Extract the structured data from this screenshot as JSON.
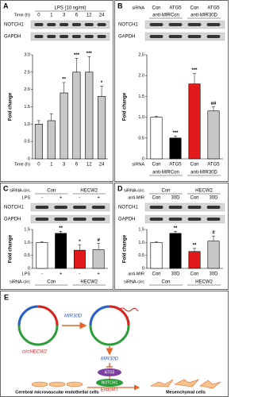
{
  "chart_data": [
    {
      "type": "bar",
      "panel": "A",
      "top_rows": [
        {
          "items": [
            "LPS (10 ng/ml)"
          ]
        },
        {
          "label": "Time (h)",
          "items": [
            "0",
            "1",
            "3",
            "6",
            "12",
            "24"
          ]
        }
      ],
      "blots": [
        "NOTCH1",
        "GAPDH"
      ],
      "ylabel": "Fold change",
      "xlabel": "Time (h)",
      "categories": [
        "0",
        "1",
        "3",
        "6",
        "12",
        "24"
      ],
      "bottom_rows": [],
      "values": [
        1.0,
        1.1,
        1.9,
        2.5,
        2.5,
        1.8
      ],
      "errors": [
        0.1,
        0.2,
        0.3,
        0.4,
        0.45,
        0.3
      ],
      "annotations": [
        "",
        "",
        "**",
        "***",
        "***",
        "*"
      ],
      "colors": [
        "#c8c8c8",
        "#c8c8c8",
        "#c8c8c8",
        "#c8c8c8",
        "#c8c8c8",
        "#c8c8c8"
      ],
      "ylim": [
        0,
        3
      ],
      "yticks": [
        0,
        0.5,
        {
          "value": 1,
          "label": "1.0"
        },
        1.5,
        {
          "value": 2,
          "label": "2.0"
        },
        2.5,
        {
          "value": 3,
          "label": "3.0"
        }
      ]
    },
    {
      "type": "bar",
      "panel": "B",
      "top_rows": [
        {
          "label": "siRNA",
          "items": [
            "Con",
            "ATG5",
            "Con",
            "ATG5"
          ]
        },
        {
          "items": [
            "anti-MIRCon",
            "anti-MIR30D"
          ]
        }
      ],
      "blots": [
        "NOTCH1",
        "GAPDH"
      ],
      "ylabel": "Fold change",
      "xlabel": "siRNA",
      "categories": [
        "Con",
        "ATG5",
        "Con",
        "ATG5"
      ],
      "bottom_rows": [
        {
          "items": [
            "anti-MIRCon",
            "anti-MIR30D"
          ]
        }
      ],
      "values": [
        1.0,
        0.5,
        1.8,
        1.15
      ],
      "errors": [
        0.02,
        0.05,
        0.25,
        0.1
      ],
      "annotations": [
        "",
        "***",
        "***",
        "##"
      ],
      "colors": [
        "#ffffff",
        "#000000",
        "#e31a1c",
        "#c8c8c8"
      ],
      "ylim": [
        0,
        2.5
      ],
      "yticks": [
        0,
        0.5,
        {
          "value": 1,
          "label": "1.0"
        },
        1.5,
        {
          "value": 2,
          "label": "2.0"
        },
        2.5
      ]
    },
    {
      "type": "bar",
      "panel": "C",
      "top_rows": [
        {
          "label": "siRNA-circ",
          "items": [
            "Con",
            "HECW2"
          ]
        },
        {
          "label": "LPS",
          "items": [
            "-",
            "+",
            "-",
            "+"
          ]
        }
      ],
      "blots": [
        "NOTCH1",
        "GAPDH"
      ],
      "ylabel": "Fold change",
      "xlabel": "LPS",
      "categories": [
        "-",
        "+",
        "-",
        "+"
      ],
      "bottom_rows": [
        {
          "label": "siRNA-circ",
          "items": [
            "Con",
            "HECW2"
          ]
        }
      ],
      "values": [
        1.0,
        1.35,
        0.7,
        0.72
      ],
      "errors": [
        0.02,
        0.08,
        0.2,
        0.25
      ],
      "annotations": [
        "",
        "**",
        "*",
        "#"
      ],
      "colors": [
        "#ffffff",
        "#000000",
        "#e31a1c",
        "#c8c8c8"
      ],
      "ylim": [
        0,
        1.5
      ],
      "yticks": [
        0,
        0.5,
        {
          "value": 1,
          "label": "1.0"
        },
        1.5
      ]
    },
    {
      "type": "bar",
      "panel": "D",
      "top_rows": [
        {
          "label": "siRNA-circ",
          "items": [
            "Con",
            "HECW2"
          ]
        },
        {
          "label": "anti-MIR",
          "items": [
            "Con",
            "30D",
            "Con",
            "30D"
          ]
        }
      ],
      "blots": [
        "NOTCH1",
        "GAPDH"
      ],
      "ylabel": "Fold change",
      "xlabel": "anti-MIR",
      "categories": [
        "Con",
        "30D",
        "Con",
        "30D"
      ],
      "bottom_rows": [
        {
          "label": "siRNA-circ",
          "items": [
            "Con",
            "HECW2"
          ]
        }
      ],
      "values": [
        1.0,
        1.35,
        0.65,
        1.05
      ],
      "errors": [
        0.02,
        0.08,
        0.12,
        0.2
      ],
      "annotations": [
        "",
        "**",
        "**",
        "#"
      ],
      "colors": [
        "#ffffff",
        "#000000",
        "#e31a1c",
        "#c8c8c8"
      ],
      "ylim": [
        0,
        1.5
      ],
      "yticks": [
        0,
        0.5,
        {
          "value": 1,
          "label": "1.0"
        },
        1.5
      ]
    }
  ],
  "diagram": {
    "panel": "E",
    "circ": "circHECW2",
    "mir_top": "MIR30D",
    "mir": "MIR30D",
    "atg": "ATG5",
    "notch": "NOTCH1",
    "process": "EndoMT",
    "left_cells": "Cerebral microvascular endothelial cells",
    "right_cells": "Mesenchymal cells"
  }
}
